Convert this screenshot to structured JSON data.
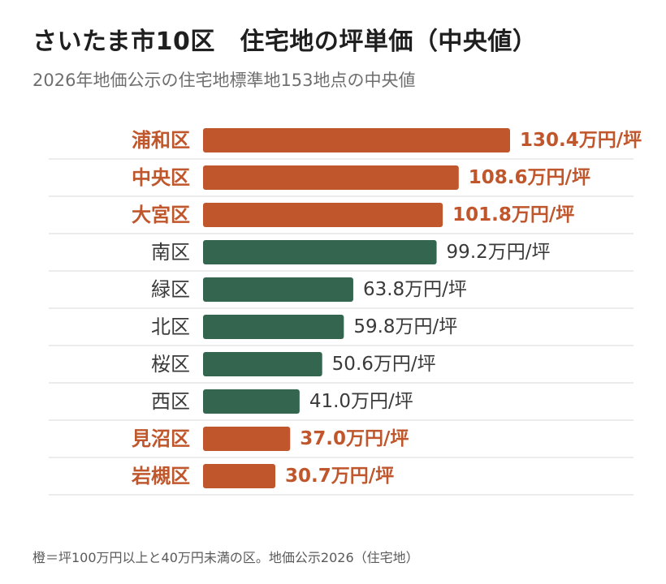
{
  "title": "さいたま市10区　住宅地の坪単価（中央値）",
  "subtitle": "2026年地価公示の住宅地標準地153地点の中央値",
  "footnote": "橙＝坪100万円以上と40万円未満の区。地価公示2026（住宅地）",
  "colors": {
    "highlight": "#c0562b",
    "normal": "#33654f",
    "normal_label": "#3a3a3a",
    "separator": "#e6e6e6"
  },
  "chart_data": {
    "type": "bar",
    "orientation": "horizontal",
    "categories": [
      "浦和区",
      "中央区",
      "大宮区",
      "南区",
      "緑区",
      "北区",
      "桜区",
      "西区",
      "見沼区",
      "岩槻区"
    ],
    "values": [
      130.4,
      108.6,
      101.8,
      99.2,
      63.8,
      59.8,
      50.6,
      41.0,
      37.0,
      30.7
    ],
    "value_labels": [
      "130.4万円/坪",
      "108.6万円/坪",
      "101.8万円/坪",
      "99.2万円/坪",
      "63.8万円/坪",
      "59.8万円/坪",
      "50.6万円/坪",
      "41.0万円/坪",
      "37.0万円/坪",
      "30.7万円/坪"
    ],
    "highlighted": [
      true,
      true,
      true,
      false,
      false,
      false,
      false,
      false,
      true,
      true
    ],
    "unit": "万円/坪",
    "xlim": [
      0,
      130.4
    ],
    "grid": false,
    "legend": "none"
  }
}
